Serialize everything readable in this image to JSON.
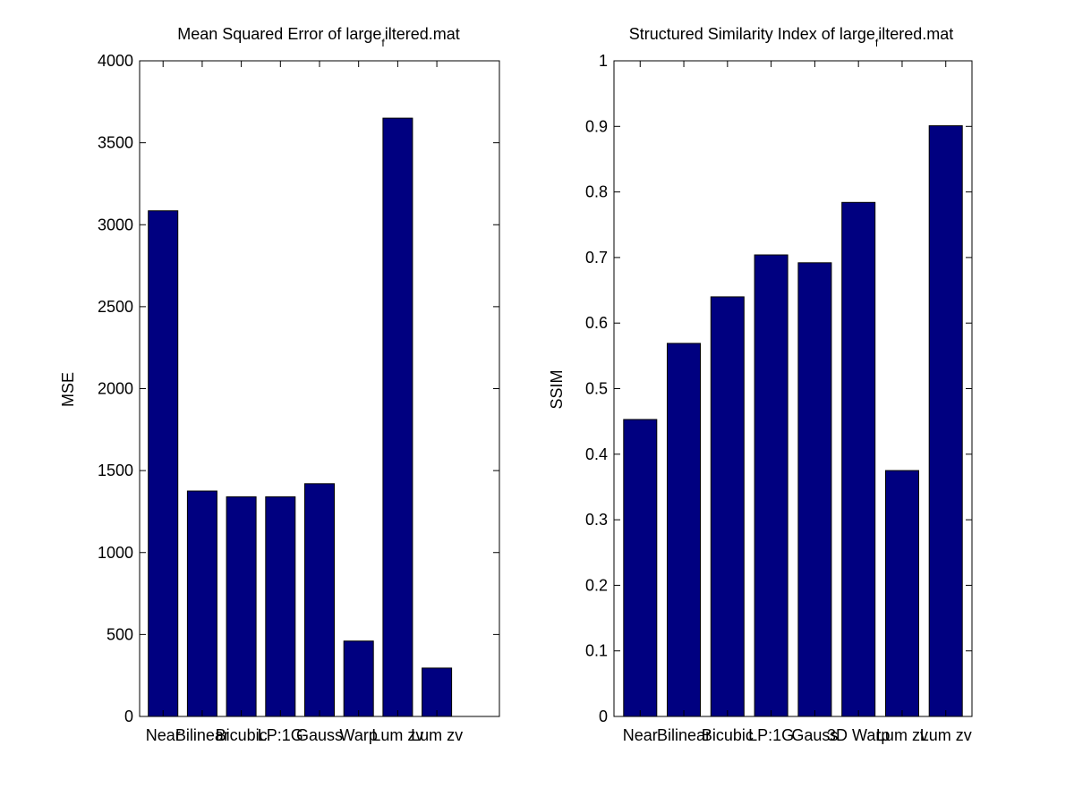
{
  "chart_data": [
    {
      "type": "bar",
      "title_main": "Mean Squared Error of large",
      "title_sub": "f",
      "title_tail": "iltered.mat",
      "xlabel": "",
      "ylabel": "MSE",
      "ylim": [
        0,
        4000
      ],
      "yticks": [
        0,
        500,
        1000,
        1500,
        2000,
        2500,
        3000,
        3500,
        4000
      ],
      "xlim": [
        0.4,
        9.6
      ],
      "categories": [
        "Nearest",
        "Bilinear",
        "Bicubic",
        "LP:1G",
        "Gauss 3D",
        "Warp",
        "Lum zv",
        "Lum zv"
      ],
      "category_labels": [
        "Near",
        "Bilinear",
        "Bicubic",
        "LP:1G",
        "Gauss",
        "Warp",
        "Lum zv",
        "Lum zv"
      ],
      "values": [
        3085,
        1375,
        1340,
        1340,
        1420,
        460,
        3650,
        295
      ],
      "bar_color": "#000080",
      "grid": false
    },
    {
      "type": "bar",
      "title_main": "Structured Similarity Index of large",
      "title_sub": "f",
      "title_tail": "iltered.mat",
      "xlabel": "",
      "ylabel": "SSIM",
      "ylim": [
        0,
        1
      ],
      "yticks": [
        0,
        0.1,
        0.2,
        0.3,
        0.4,
        0.5,
        0.6,
        0.7,
        0.8,
        0.9,
        1
      ],
      "xlim": [
        0.4,
        8.6
      ],
      "categories": [
        "Nearest",
        "Bilinear",
        "Bicubic",
        "LP:1G",
        "Gauss 3D",
        "Warp",
        "Lum zv",
        "Lum zv"
      ],
      "category_labels": [
        "Near",
        "Bilinear",
        "Bicubic",
        "LP:1G",
        "Gauss",
        "3D Warp",
        "Lum zv",
        "Lum zv"
      ],
      "values": [
        0.453,
        0.569,
        0.64,
        0.704,
        0.692,
        0.784,
        0.375,
        0.901
      ],
      "bar_color": "#000080",
      "grid": false
    }
  ]
}
